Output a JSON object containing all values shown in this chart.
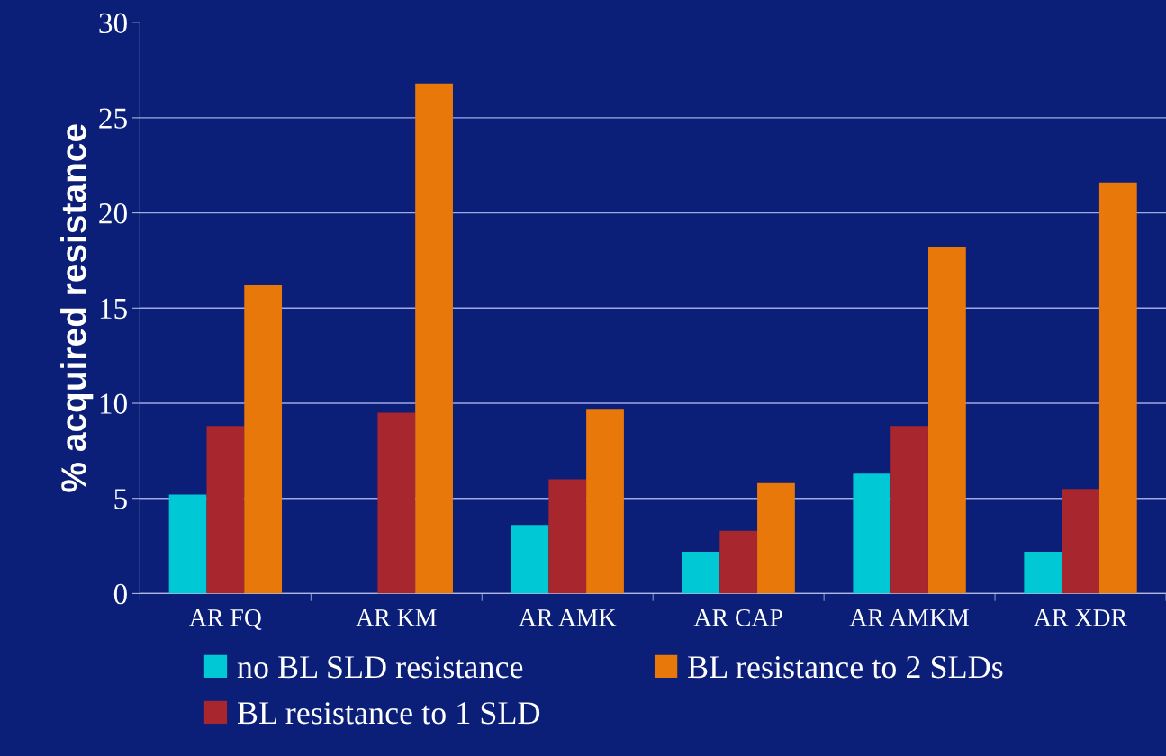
{
  "chart_data": {
    "type": "bar",
    "ylabel": "% acquired resistance",
    "categories": [
      "AR FQ",
      "AR KM",
      "AR AMK",
      "AR CAP",
      "AR AMKM",
      "AR XDR"
    ],
    "series": [
      {
        "name": "no BL SLD resistance",
        "color": "#00c8d4",
        "values": [
          5.2,
          0,
          3.6,
          2.2,
          6.3,
          2.2
        ]
      },
      {
        "name": "BL resistance to 1 SLD",
        "color": "#a8262e",
        "values": [
          8.8,
          9.5,
          6.0,
          3.3,
          8.8,
          5.5
        ]
      },
      {
        "name": "BL resistance to 2 SLDs",
        "color": "#e8780a",
        "values": [
          16.2,
          26.8,
          9.7,
          5.8,
          18.2,
          21.6
        ]
      }
    ],
    "ylim": [
      0,
      30
    ],
    "yticks": [
      0,
      5,
      10,
      15,
      20,
      25,
      30
    ],
    "grid": "y",
    "legend": "bottom"
  }
}
